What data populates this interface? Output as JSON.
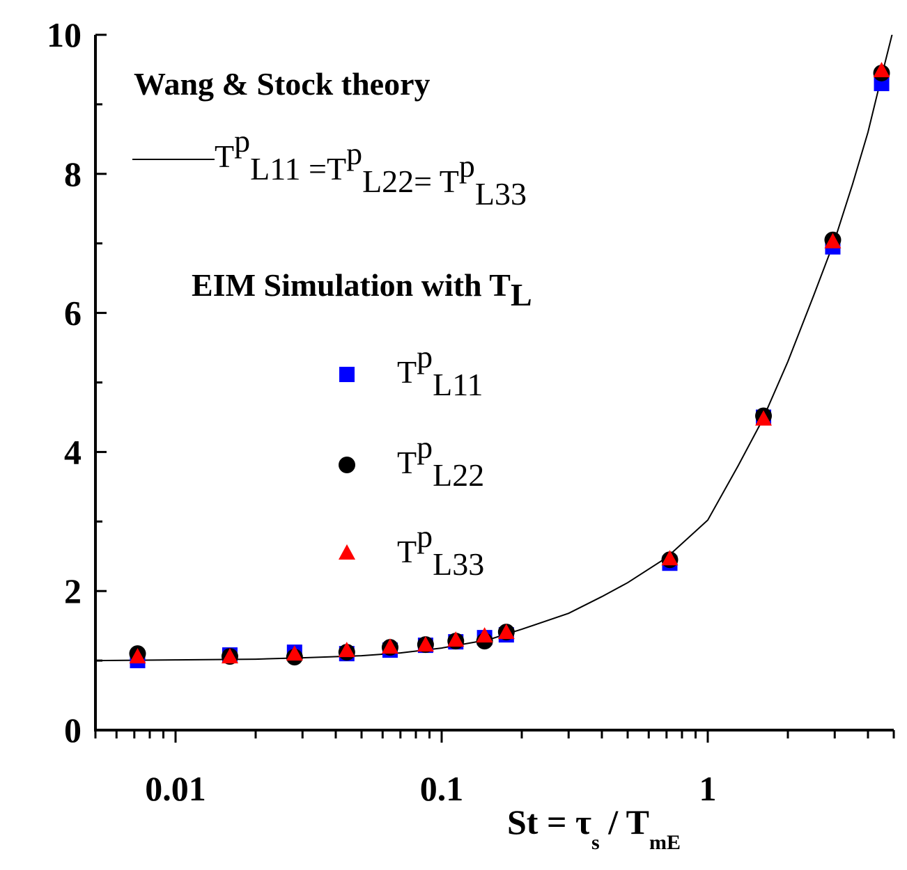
{
  "chart_data": {
    "type": "scatter",
    "xscale": "log",
    "xlim": [
      0.005,
      5
    ],
    "ylim": [
      0,
      10
    ],
    "x_ticks": [
      {
        "value": 0.01,
        "label": "0.01"
      },
      {
        "value": 0.1,
        "label": "0.1"
      },
      {
        "value": 1,
        "label": "1"
      }
    ],
    "y_ticks": [
      {
        "value": 0,
        "label": "0"
      },
      {
        "value": 2,
        "label": "2"
      },
      {
        "value": 4,
        "label": "4"
      },
      {
        "value": 6,
        "label": "6"
      },
      {
        "value": 8,
        "label": "8"
      },
      {
        "value": 10,
        "label": "10"
      }
    ],
    "xlabel": {
      "main": "St = τ",
      "sub1": "s",
      "mid": " / T",
      "sub2": "mE"
    },
    "theory": {
      "heading": "Wang & Stock theory",
      "label_parts": [
        {
          "t": "T",
          "sup": "p",
          "sub": "L11"
        },
        {
          "t": " =T",
          "sup": "p",
          "sub": "L22"
        },
        {
          "t": "= T",
          "sup": "p",
          "sub": "L33"
        }
      ],
      "color": "#000000",
      "points": [
        [
          0.005,
          1.0
        ],
        [
          0.01,
          1.01
        ],
        [
          0.02,
          1.02
        ],
        [
          0.03,
          1.04
        ],
        [
          0.05,
          1.07
        ],
        [
          0.07,
          1.11
        ],
        [
          0.1,
          1.18
        ],
        [
          0.15,
          1.3
        ],
        [
          0.2,
          1.45
        ],
        [
          0.3,
          1.68
        ],
        [
          0.4,
          1.92
        ],
        [
          0.5,
          2.12
        ],
        [
          0.7,
          2.48
        ],
        [
          1.0,
          3.02
        ],
        [
          1.3,
          3.8
        ],
        [
          1.6,
          4.45
        ],
        [
          2.0,
          5.3
        ],
        [
          2.5,
          6.25
        ],
        [
          3.0,
          7.05
        ],
        [
          3.5,
          7.85
        ],
        [
          4.0,
          8.6
        ],
        [
          4.5,
          9.4
        ],
        [
          5.0,
          10.1
        ]
      ]
    },
    "simulation_heading": "EIM Simulation with T",
    "simulation_heading_sub": "L",
    "series": [
      {
        "name": "T^p_L11",
        "legend": {
          "t": "T",
          "sup": "p",
          "sub": "L11"
        },
        "marker": "square",
        "color": "#0000ff",
        "x": [
          0.0072,
          0.016,
          0.028,
          0.044,
          0.064,
          0.087,
          0.113,
          0.145,
          0.175,
          0.72,
          1.62,
          2.95,
          4.5
        ],
        "y": [
          1.0,
          1.08,
          1.12,
          1.1,
          1.15,
          1.22,
          1.27,
          1.33,
          1.37,
          2.4,
          4.5,
          6.95,
          9.3
        ]
      },
      {
        "name": "T^p_L22",
        "legend": {
          "t": "T",
          "sup": "p",
          "sub": "L22"
        },
        "marker": "circle",
        "color": "#000000",
        "x": [
          0.0072,
          0.016,
          0.028,
          0.044,
          0.064,
          0.087,
          0.113,
          0.145,
          0.175,
          0.72,
          1.62,
          2.95,
          4.5
        ],
        "y": [
          1.1,
          1.06,
          1.05,
          1.12,
          1.19,
          1.23,
          1.28,
          1.28,
          1.41,
          2.45,
          4.52,
          7.05,
          9.45
        ]
      },
      {
        "name": "T^p_L33",
        "legend": {
          "t": "T",
          "sup": "p",
          "sub": "L33"
        },
        "marker": "triangle",
        "color": "#ff0000",
        "x": [
          0.0072,
          0.016,
          0.028,
          0.044,
          0.064,
          0.087,
          0.113,
          0.145,
          0.175,
          0.72,
          1.62,
          2.95,
          4.5
        ],
        "y": [
          1.05,
          1.05,
          1.09,
          1.14,
          1.19,
          1.22,
          1.29,
          1.35,
          1.4,
          2.46,
          4.47,
          7.02,
          9.48
        ]
      }
    ]
  }
}
